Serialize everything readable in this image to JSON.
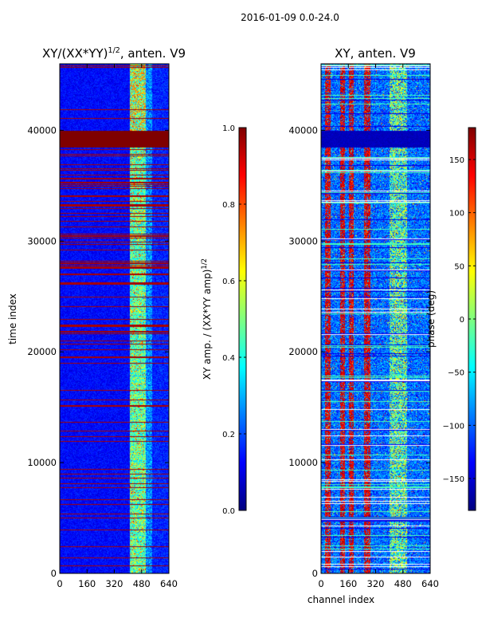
{
  "figure": {
    "suptitle": "2016-01-09 0.0-24.0"
  },
  "colors": {
    "jet": [
      "#00007f",
      "#0000ff",
      "#007fff",
      "#00ffff",
      "#7fff7f",
      "#ffff00",
      "#ff7f00",
      "#ff0000",
      "#7f0000"
    ]
  },
  "chart_data": [
    {
      "type": "heatmap",
      "title": "XY/(XX*YY)^1/2, anten. V9",
      "title_main": "XY/(XX*YY)",
      "title_sup": "1/2",
      "title_tail": ", anten. V9",
      "xlabel": "",
      "ylabel": "time index",
      "xlim": [
        0,
        640
      ],
      "ylim": [
        0,
        46000
      ],
      "xticks": [
        "0",
        "160",
        "320",
        "480",
        "640"
      ],
      "xtick_values": [
        0,
        160,
        320,
        480,
        640
      ],
      "yticks": [
        "0",
        "10000",
        "20000",
        "30000",
        "40000"
      ],
      "ytick_values": [
        0,
        10000,
        20000,
        30000,
        40000
      ],
      "colormap": "jet",
      "colorbar": {
        "label_main": "XY amp. / (XX*YY amp)",
        "label_sup": "1/2",
        "range": [
          0.0,
          1.0
        ],
        "ticks": [
          "0.0",
          "0.2",
          "0.4",
          "0.6",
          "0.8",
          "1.0"
        ],
        "tick_values": [
          0.0,
          0.2,
          0.4,
          0.6,
          0.8,
          1.0
        ]
      },
      "saturated_band": {
        "time_from": 38500,
        "time_to": 40000,
        "value": 1.0
      },
      "bright_channel_range": [
        410,
        500
      ],
      "background_value": 0.08
    },
    {
      "type": "heatmap",
      "title": "XY, anten. V9",
      "xlabel": "channel index",
      "ylabel": "",
      "xlim": [
        0,
        640
      ],
      "ylim": [
        0,
        46000
      ],
      "xticks": [
        "0",
        "160",
        "320",
        "480",
        "640"
      ],
      "xtick_values": [
        0,
        160,
        320,
        480,
        640
      ],
      "yticks": [
        "0",
        "10000",
        "20000",
        "30000",
        "40000"
      ],
      "ytick_values": [
        0,
        10000,
        20000,
        30000,
        40000
      ],
      "colormap": "jet",
      "colorbar": {
        "label": "phase (deg)",
        "range": [
          -180,
          180
        ],
        "ticks": [
          "−150",
          "−100",
          "−50",
          "0",
          "50",
          "100",
          "150"
        ],
        "tick_values": [
          -150,
          -100,
          -50,
          0,
          50,
          100,
          150
        ]
      },
      "dark_band": {
        "time_from": 38500,
        "time_to": 40000
      },
      "red_stripe_channels": [
        [
          20,
          55
        ],
        [
          110,
          140
        ],
        [
          160,
          190
        ],
        [
          250,
          285
        ]
      ],
      "bright_channel_range": [
        400,
        500
      ]
    }
  ]
}
